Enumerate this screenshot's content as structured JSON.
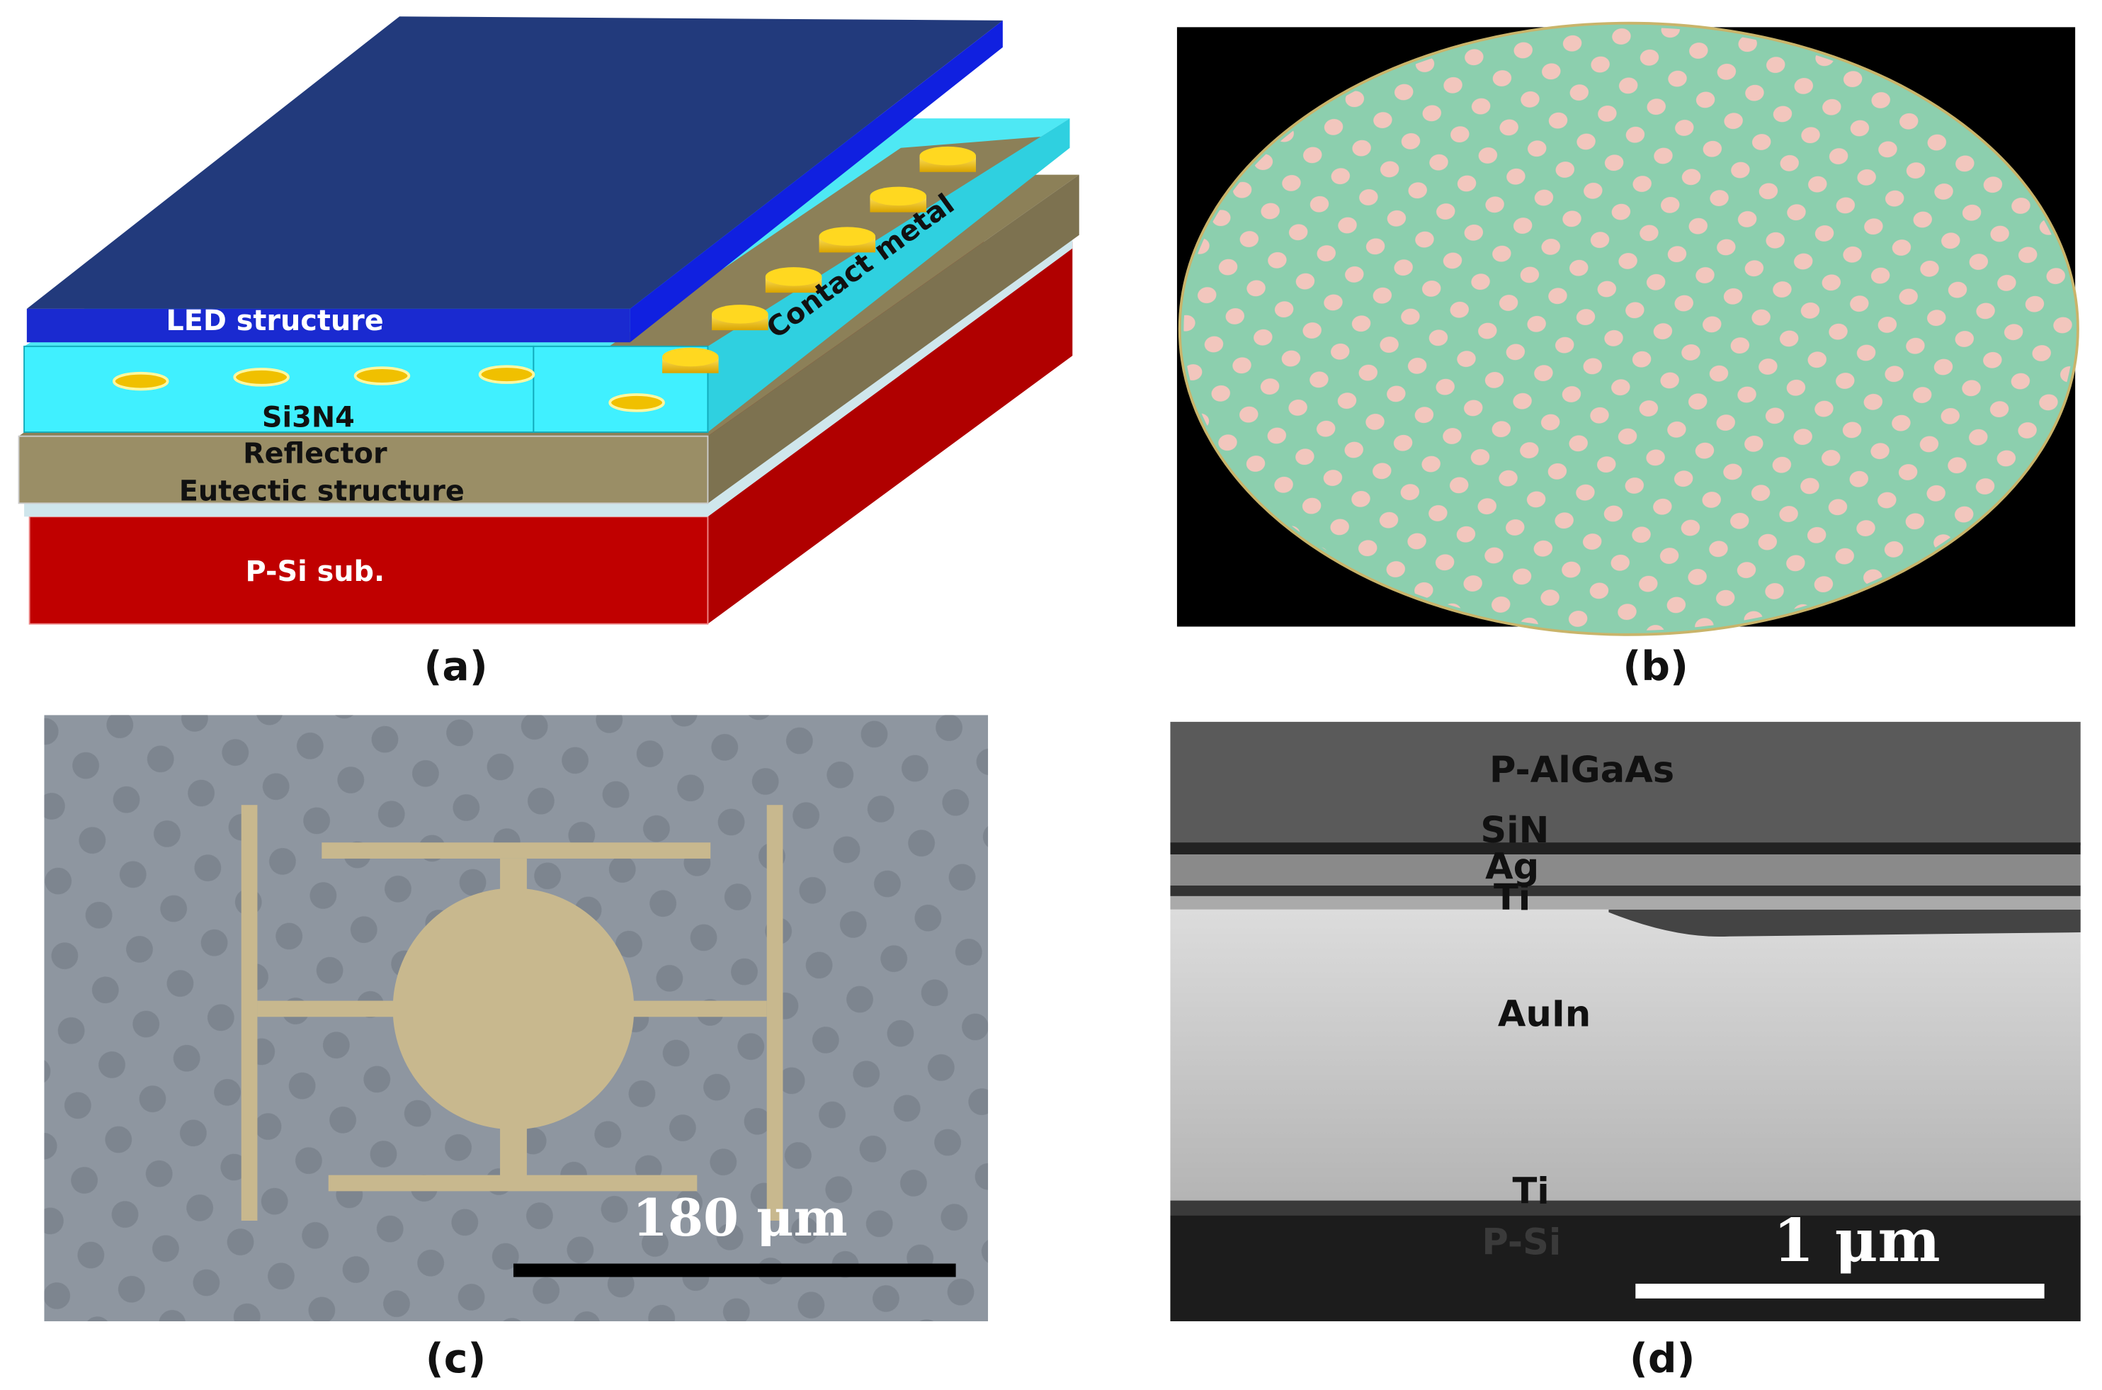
{
  "panels": [
    {
      "label": "(a)",
      "layers": [
        "LED structure",
        "Si3N4",
        "Reflector",
        "Eutectic structure",
        "P-Si sub."
      ],
      "annotation": "Contact metal"
    },
    {
      "label": "(b)"
    },
    {
      "label": "(c)",
      "scale_bar": "180 μm"
    },
    {
      "label": "(d)",
      "layers": [
        "P-AlGaAs",
        "SiN",
        "Ag",
        "Ti",
        "AuIn",
        "Ti",
        "P-Si"
      ],
      "scale_bar": "1 μm"
    }
  ]
}
